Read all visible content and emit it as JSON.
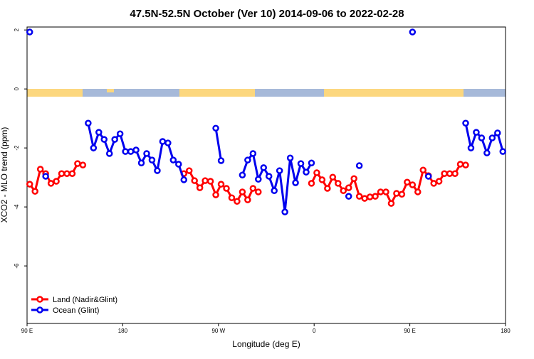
{
  "chart_data": {
    "type": "line",
    "title": "47.5N-52.5N October (Ver 10)   2014-09-06 to 2022-02-28",
    "x_label": "Longitude (deg E)",
    "y_label": "XCO2 - MLO trend (ppm)",
    "x": [
      92.5,
      97.5,
      102.5,
      107.5,
      112.5,
      117.5,
      122.5,
      127.5,
      132.5,
      137.5,
      142.5,
      147.5,
      152.5,
      157.5,
      162.5,
      167.5,
      172.5,
      177.5,
      182.5,
      187.5,
      192.5,
      197.5,
      202.5,
      207.5,
      212.5,
      217.5,
      222.5,
      227.5,
      232.5,
      237.5,
      242.5,
      247.5,
      252.5,
      257.5,
      262.5,
      267.5,
      272.5,
      277.5,
      282.5,
      287.5,
      292.5,
      297.5,
      302.5,
      307.5,
      312.5,
      317.5,
      322.5,
      327.5,
      332.5,
      337.5,
      342.5,
      347.5,
      352.5,
      357.5,
      362.5,
      367.5,
      372.5,
      377.5,
      382.5,
      387.5,
      392.5,
      397.5,
      402.5,
      407.5,
      412.5,
      417.5,
      422.5,
      427.5,
      432.5,
      437.5,
      442.5,
      447.5,
      452.5,
      457.5,
      462.5,
      467.5,
      472.5,
      477.5,
      482.5,
      487.5,
      492.5,
      497.5,
      502.5,
      507.5,
      512.5,
      517.5,
      522.5,
      527.5,
      532.5,
      537.5
    ],
    "series": [
      {
        "name": "Land (Nadir&Glint)",
        "color": "#ff0000",
        "values": [
          -3.23,
          -3.47,
          -2.72,
          -2.87,
          -3.2,
          -3.13,
          -2.87,
          -2.87,
          -2.87,
          -2.53,
          -2.58,
          null,
          null,
          null,
          null,
          null,
          null,
          null,
          null,
          null,
          null,
          null,
          null,
          null,
          null,
          null,
          null,
          null,
          null,
          -2.87,
          -2.77,
          -3.11,
          -3.35,
          -3.11,
          -3.13,
          -3.59,
          -3.23,
          -3.37,
          -3.69,
          -3.81,
          -3.49,
          -3.76,
          -3.37,
          -3.49,
          null,
          null,
          null,
          null,
          null,
          null,
          null,
          null,
          null,
          -3.2,
          -2.84,
          -3.08,
          -3.37,
          -2.99,
          -3.2,
          -3.45,
          -3.35,
          -3.04,
          -3.64,
          -3.71,
          -3.66,
          -3.64,
          -3.49,
          -3.49,
          -3.88,
          -3.54,
          -3.57,
          -3.16,
          -3.25,
          -3.49,
          -2.75,
          -2.94,
          -3.2,
          -3.13,
          -2.87,
          -2.87,
          -2.87,
          -2.55,
          -2.58,
          null,
          null,
          null,
          null,
          null,
          null,
          null
        ]
      },
      {
        "name": "Ocean (Glint)",
        "color": "#0000ee",
        "values": [
          1.93,
          null,
          null,
          -2.96,
          null,
          null,
          null,
          null,
          null,
          null,
          null,
          -1.16,
          -2.0,
          -1.47,
          -1.71,
          -2.19,
          -1.71,
          -1.52,
          -2.12,
          -2.12,
          -2.07,
          -2.51,
          -2.19,
          -2.41,
          -2.77,
          -1.78,
          -1.83,
          -2.41,
          -2.55,
          -3.08,
          null,
          null,
          null,
          null,
          null,
          -1.33,
          -2.43,
          null,
          null,
          null,
          -2.92,
          -2.41,
          -2.19,
          -3.06,
          -2.67,
          -2.96,
          -3.45,
          -2.77,
          -4.17,
          -2.34,
          -3.18,
          -2.53,
          -2.82,
          -2.51,
          null,
          null,
          null,
          null,
          null,
          null,
          -3.64,
          null,
          -2.6,
          null,
          null,
          null,
          null,
          null,
          null,
          null,
          null,
          null,
          1.93,
          null,
          null,
          -2.96,
          null,
          null,
          null,
          null,
          null,
          null,
          -1.16,
          -2.0,
          -1.47,
          -1.66,
          -2.17,
          -1.66,
          -1.49,
          -2.12
        ]
      }
    ],
    "xlim": [
      90,
      540
    ],
    "xticks": [
      {
        "value": 90,
        "label": "90 E"
      },
      180,
      {
        "value": 270,
        "label": "90 W"
      },
      {
        "value": 360,
        "label": "0"
      },
      {
        "value": 450,
        "label": "90 E"
      },
      180
    ],
    "ylim": [
      -7.95,
      2.1
    ],
    "yticks": [
      2,
      0,
      -2,
      -4,
      -6
    ],
    "legend": "bottom-left"
  }
}
